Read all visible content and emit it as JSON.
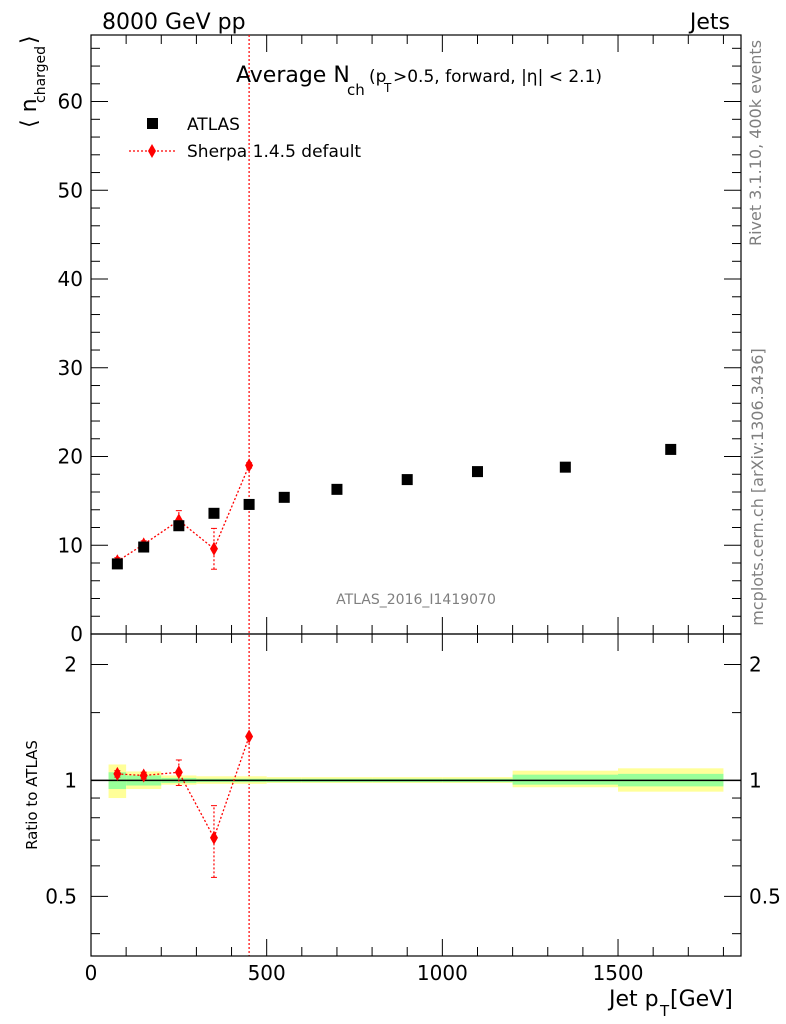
{
  "header": {
    "left": "8000 GeV pp",
    "right": "Jets"
  },
  "title": {
    "main": "Average N",
    "main_sub": "ch",
    "detail_pre": "(p",
    "detail_sub": "T",
    "detail_post": ">0.5, forward, |η| < 2.1)"
  },
  "side_labels": {
    "rivet": "Rivet 3.1.10,  400k events",
    "mcplots": "mcplots.cern.ch [arXiv:1306.3436]"
  },
  "watermark": "ATLAS_2016_I1419070",
  "legend": {
    "data_label": "ATLAS",
    "mc_label": "Sherpa 1.4.5 default"
  },
  "colors": {
    "data": "#000000",
    "mc": "#ff0000",
    "band_inner": "#99ff99",
    "band_outer": "#ffff99"
  },
  "chart_data": [
    {
      "type": "scatter",
      "panel": "main",
      "ylabel_main": "⟨ n",
      "ylabel_sub": "charged",
      "ylabel_close": "⟩",
      "xlim": [
        0,
        1850
      ],
      "ylim": [
        0,
        67.5
      ],
      "y_ticks": [
        0,
        10,
        20,
        30,
        40,
        50,
        60
      ],
      "y_tick_labels": [
        "0",
        "10",
        "20",
        "30",
        "40",
        "50",
        "60"
      ],
      "series": [
        {
          "name": "ATLAS",
          "marker": "square",
          "x": [
            75,
            150,
            250,
            350,
            450,
            550,
            700,
            900,
            1100,
            1350,
            1650
          ],
          "xlow": [
            50,
            100,
            200,
            300,
            400,
            500,
            600,
            800,
            1000,
            1200,
            1500
          ],
          "xhigh": [
            100,
            200,
            300,
            400,
            500,
            600,
            800,
            1000,
            1200,
            1500,
            1800
          ],
          "y": [
            7.9,
            9.8,
            12.2,
            13.6,
            14.6,
            15.4,
            16.3,
            17.4,
            18.3,
            18.8,
            20.8
          ]
        },
        {
          "name": "Sherpa 1.4.5 default",
          "marker": "diamond",
          "x": [
            75,
            150,
            250,
            350,
            450
          ],
          "y": [
            8.2,
            10.1,
            12.8,
            9.6,
            19.0
          ],
          "yerr_low": [
            0.4,
            0.4,
            1.1,
            2.3,
            0.3
          ],
          "yerr_high": [
            0.4,
            0.4,
            1.1,
            2.3,
            0.3
          ],
          "extra_vertical_line_at_x": 450
        }
      ]
    },
    {
      "type": "scatter",
      "panel": "ratio",
      "ylabel": "Ratio to ATLAS",
      "xlabel_main": "Jet p",
      "xlabel_sub": "T",
      "xlabel_unit": " [GeV]",
      "xlim": [
        0,
        1850
      ],
      "ylim": [
        0.35,
        2.4
      ],
      "y_scale": "log",
      "y_ticks": [
        0.5,
        1,
        2
      ],
      "y_tick_labels": [
        "0.5",
        "1",
        "2"
      ],
      "x_ticks": [
        0,
        500,
        1000,
        1500
      ],
      "x_tick_labels": [
        "0",
        "500",
        "1000",
        "1500"
      ],
      "reference_line": 1,
      "bands": {
        "xlow": [
          50,
          100,
          200,
          300,
          400,
          500,
          600,
          800,
          1000,
          1200,
          1500
        ],
        "xhigh": [
          100,
          200,
          300,
          400,
          500,
          600,
          800,
          1000,
          1200,
          1500,
          1800
        ],
        "inner_low": [
          0.95,
          0.97,
          0.985,
          0.99,
          0.99,
          0.99,
          0.99,
          0.99,
          0.99,
          0.975,
          0.965
        ],
        "inner_high": [
          1.05,
          1.03,
          1.015,
          1.01,
          1.01,
          1.01,
          1.01,
          1.01,
          1.01,
          1.035,
          1.04
        ],
        "outer_low": [
          0.9,
          0.95,
          0.975,
          0.98,
          0.98,
          0.985,
          0.985,
          0.985,
          0.985,
          0.96,
          0.935
        ],
        "outer_high": [
          1.1,
          1.055,
          1.03,
          1.025,
          1.025,
          1.02,
          1.02,
          1.02,
          1.02,
          1.06,
          1.075
        ]
      },
      "series": [
        {
          "name": "Sherpa 1.4.5 default",
          "x": [
            75,
            150,
            250,
            350,
            450
          ],
          "y": [
            1.04,
            1.03,
            1.05,
            0.71,
            1.3
          ],
          "yerr_low": [
            0.02,
            0.02,
            0.08,
            0.15,
            0.0
          ],
          "yerr_high": [
            0.02,
            0.02,
            0.08,
            0.15,
            0.0
          ]
        }
      ]
    }
  ]
}
